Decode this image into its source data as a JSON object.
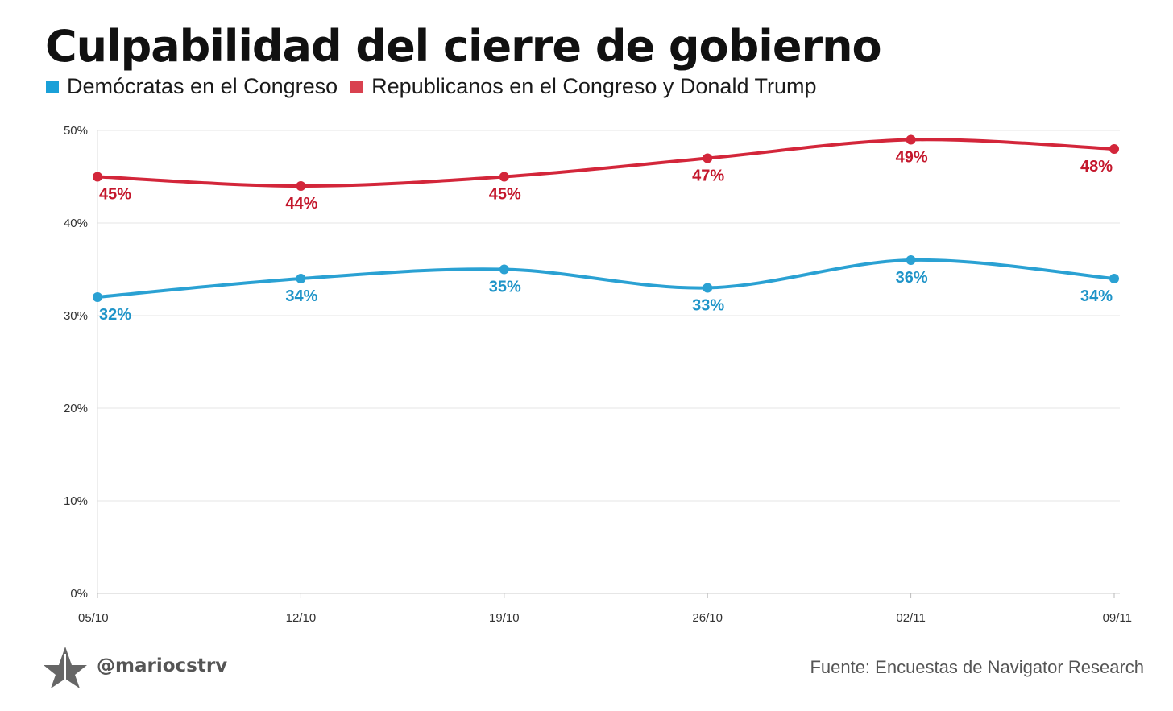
{
  "chart_data": {
    "type": "line",
    "title": "Culpabilidad del cierre de gobierno",
    "categories": [
      "05/10",
      "12/10",
      "19/10",
      "26/10",
      "02/11",
      "09/11"
    ],
    "yticks": [
      "0%",
      "10%",
      "20%",
      "30%",
      "40%",
      "50%"
    ],
    "ylim": [
      0,
      50
    ],
    "grid": true,
    "legend_placement": "top-left",
    "series": [
      {
        "name": "Demócratas en el Congreso",
        "color": "#2aa1d3",
        "label_color": "#1f94c8",
        "values": [
          32,
          34,
          35,
          33,
          36,
          34
        ],
        "labels": [
          "32%",
          "34%",
          "35%",
          "33%",
          "36%",
          "34%"
        ]
      },
      {
        "name": "Republicanos en el Congreso y Donald Trump",
        "color": "#d3263a",
        "label_color": "#c4172c",
        "values": [
          45,
          44,
          45,
          47,
          49,
          48
        ],
        "labels": [
          "45%",
          "44%",
          "45%",
          "47%",
          "49%",
          "48%"
        ]
      }
    ]
  },
  "footer": {
    "handle": "@mariocstrv",
    "source": "Fuente: Encuestas de Navigator Research"
  },
  "legend_colors": [
    "#1aa0d8",
    "#d9414f"
  ]
}
